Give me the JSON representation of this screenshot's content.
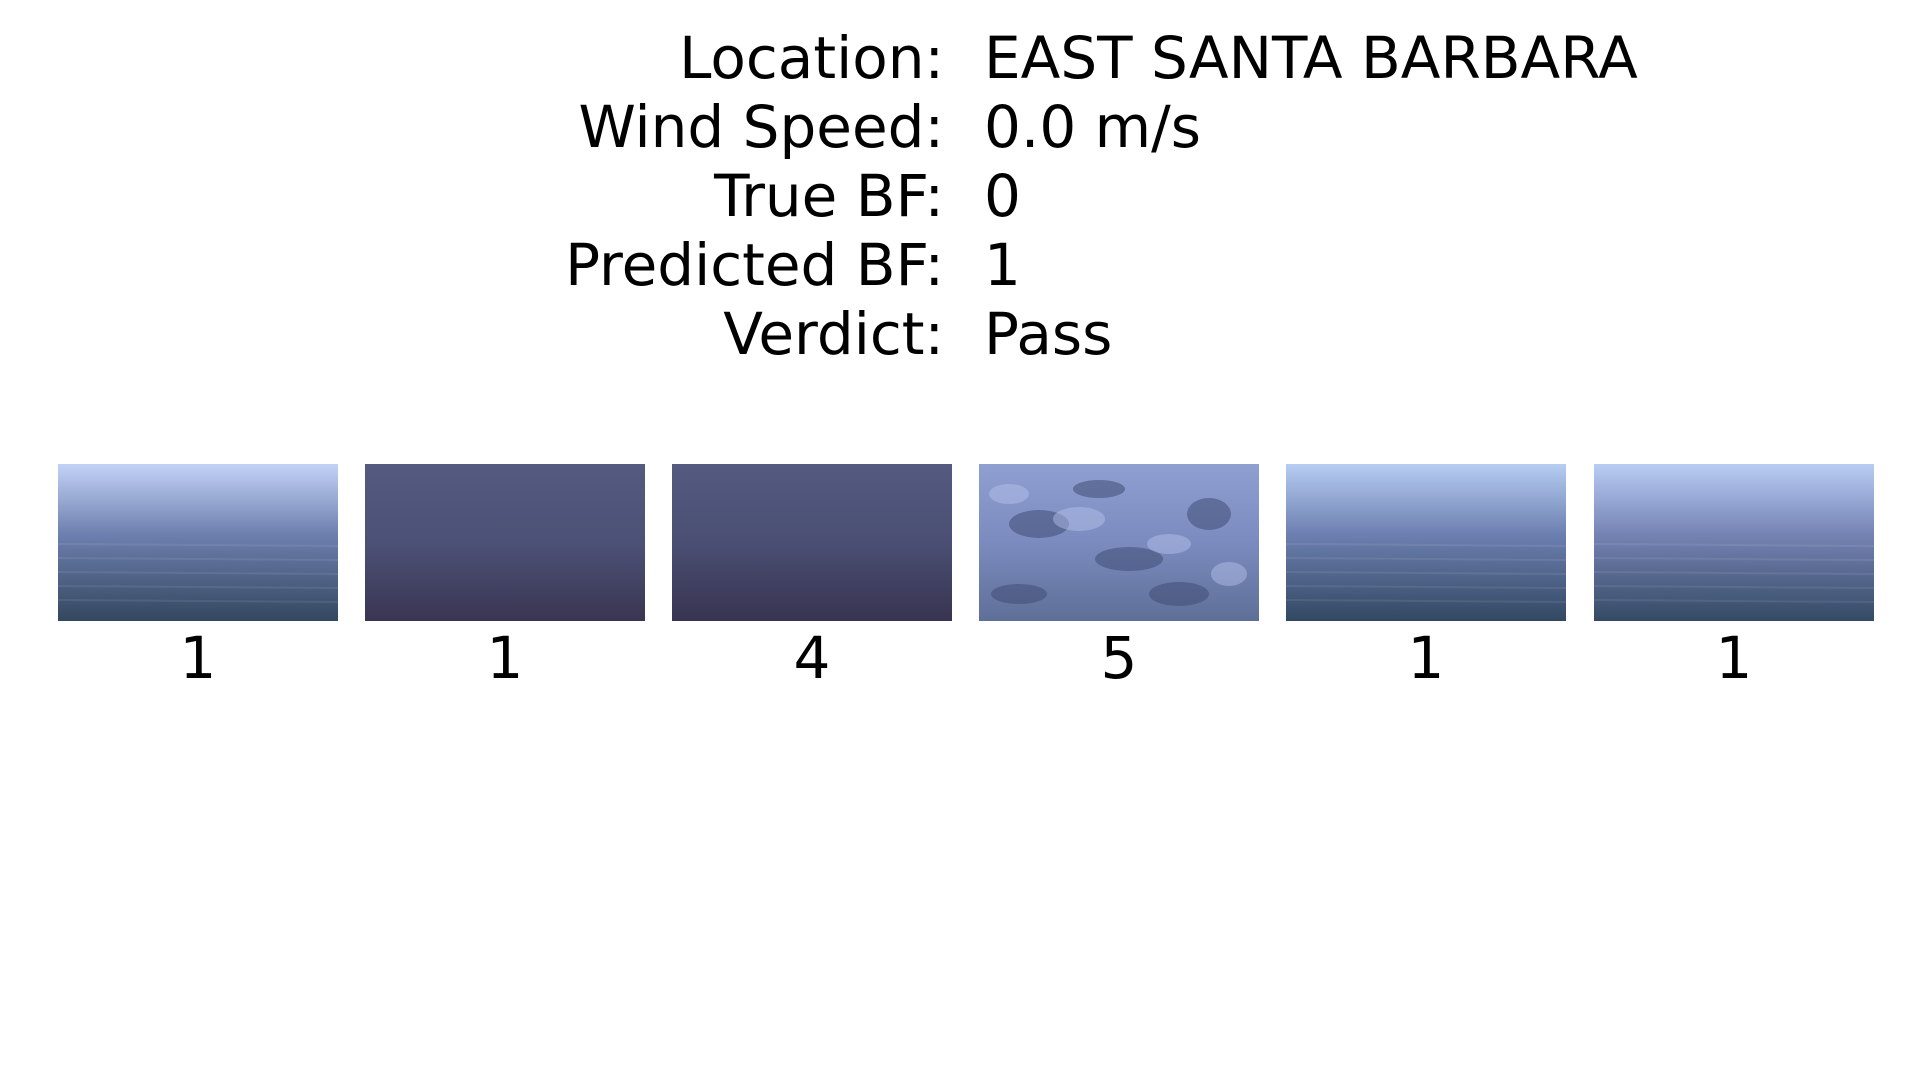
{
  "info": {
    "rows": [
      {
        "label": "Location:",
        "value": "EAST SANTA BARBARA"
      },
      {
        "label": "Wind Speed:",
        "value": "0.0 m/s"
      },
      {
        "label": "True BF:",
        "value": "0"
      },
      {
        "label": "Predicted BF:",
        "value": "1"
      },
      {
        "label": "Verdict:",
        "value": "Pass"
      }
    ]
  },
  "thumbnails": [
    {
      "label": "1",
      "image": "calm-sea-horizon",
      "colors": {
        "top": "#c3d3f7",
        "mid": "#6d7fae",
        "bottom": "#33475f"
      }
    },
    {
      "label": "1",
      "image": "dark-water-surface",
      "colors": {
        "top": "#545a80",
        "mid": "#4c5176",
        "bottom": "#3a3552"
      }
    },
    {
      "label": "4",
      "image": "dark-water-surface",
      "colors": {
        "top": "#545a80",
        "mid": "#4a4f73",
        "bottom": "#383451"
      }
    },
    {
      "label": "5",
      "image": "rippled-water-closeup",
      "colors": {
        "top": "#8f9fd0",
        "mid": "#7b8bbf",
        "bottom": "#5e6f97"
      }
    },
    {
      "label": "1",
      "image": "calm-sea-horizon",
      "colors": {
        "top": "#b7cdf3",
        "mid": "#6c7fb0",
        "bottom": "#324862"
      }
    },
    {
      "label": "1",
      "image": "calm-sea-horizon",
      "colors": {
        "top": "#b9cdf4",
        "mid": "#7583b4",
        "bottom": "#344a64"
      }
    }
  ]
}
